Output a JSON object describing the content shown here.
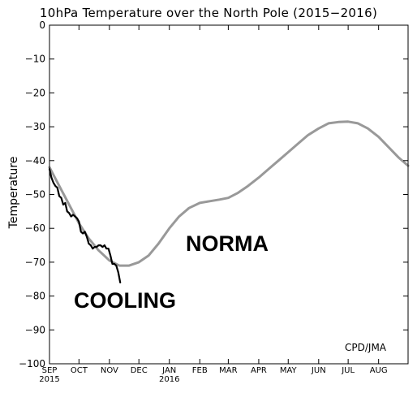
{
  "chart_data": {
    "type": "line",
    "title": "10hPa Temperature over the North Pole (2015−2016)",
    "ylabel": "Temperature",
    "xlabel": "",
    "ylim": [
      -100,
      0
    ],
    "yticks": [
      0,
      -10,
      -20,
      -30,
      -40,
      -50,
      -60,
      -70,
      -80,
      -90,
      -100
    ],
    "ytick_labels": [
      "0",
      "−10",
      "−20",
      "−30",
      "−40",
      "−50",
      "−60",
      "−70",
      "−80",
      "−90",
      "−100"
    ],
    "xlim": [
      "2015-09-01",
      "2016-08-31"
    ],
    "month_ticks": [
      {
        "date": "2015-09-01",
        "label": "SEP",
        "year": "2015"
      },
      {
        "date": "2015-10-01",
        "label": "OCT",
        "year": ""
      },
      {
        "date": "2015-11-01",
        "label": "NOV",
        "year": ""
      },
      {
        "date": "2015-12-01",
        "label": "DEC",
        "year": ""
      },
      {
        "date": "2016-01-01",
        "label": "JAN",
        "year": "2016"
      },
      {
        "date": "2016-02-01",
        "label": "FEB",
        "year": ""
      },
      {
        "date": "2016-03-01",
        "label": "MAR",
        "year": ""
      },
      {
        "date": "2016-04-01",
        "label": "APR",
        "year": ""
      },
      {
        "date": "2016-05-01",
        "label": "MAY",
        "year": ""
      },
      {
        "date": "2016-06-01",
        "label": "JUN",
        "year": ""
      },
      {
        "date": "2016-07-01",
        "label": "JUL",
        "year": ""
      },
      {
        "date": "2016-08-01",
        "label": "AUG",
        "year": ""
      }
    ],
    "grid": false,
    "series": [
      {
        "color": "#999999",
        "x": [
          "2015-09-01",
          "2015-09-11",
          "2015-09-21",
          "2015-10-01",
          "2015-10-11",
          "2015-10-21",
          "2015-11-01",
          "2015-11-11",
          "2015-11-21",
          "2015-12-01",
          "2015-12-11",
          "2015-12-21",
          "2016-01-01",
          "2016-01-11",
          "2016-01-21",
          "2016-02-01",
          "2016-02-11",
          "2016-02-21",
          "2016-03-01",
          "2016-03-11",
          "2016-03-21",
          "2016-04-01",
          "2016-04-11",
          "2016-04-21",
          "2016-05-01",
          "2016-05-11",
          "2016-05-21",
          "2016-06-01",
          "2016-06-11",
          "2016-06-21",
          "2016-07-01",
          "2016-07-11",
          "2016-07-21",
          "2016-08-01",
          "2016-08-11",
          "2016-08-21",
          "2016-08-31"
        ],
        "y": [
          -42,
          -47.5,
          -53,
          -58.5,
          -63,
          -66.5,
          -69.5,
          -71,
          -71,
          -70,
          -68,
          -64.5,
          -60,
          -56.5,
          -54,
          -52.5,
          -52,
          -51.5,
          -51,
          -49.5,
          -47.5,
          -45,
          -42.5,
          -40,
          -37.5,
          -35,
          -32.5,
          -30.5,
          -29,
          -28.6,
          -28.5,
          -29,
          -30.5,
          -33,
          -36,
          -39,
          -41.5
        ]
      },
      {
        "color": "#000000",
        "x": [
          "2015-09-01",
          "2015-09-03",
          "2015-09-05",
          "2015-09-07",
          "2015-09-09",
          "2015-09-11",
          "2015-09-13",
          "2015-09-15",
          "2015-09-17",
          "2015-09-19",
          "2015-09-21",
          "2015-09-23",
          "2015-09-25",
          "2015-09-27",
          "2015-09-29",
          "2015-10-01",
          "2015-10-03",
          "2015-10-05",
          "2015-10-07",
          "2015-10-09",
          "2015-10-11",
          "2015-10-13",
          "2015-10-15",
          "2015-10-17",
          "2015-10-19",
          "2015-10-21",
          "2015-10-23",
          "2015-10-25",
          "2015-10-27",
          "2015-10-29",
          "2015-10-31",
          "2015-11-02",
          "2015-11-04",
          "2015-11-06",
          "2015-11-08",
          "2015-11-10",
          "2015-11-12"
        ],
        "y": [
          -42.5,
          -45,
          -46.5,
          -47.5,
          -48,
          -50.5,
          -51,
          -53,
          -52.5,
          -55,
          -55.5,
          -56.5,
          -56,
          -56.5,
          -57,
          -58,
          -61,
          -61.5,
          -61,
          -62.5,
          -64.5,
          -65,
          -66,
          -65.5,
          -65.5,
          -65,
          -65,
          -65.5,
          -65,
          -66,
          -66,
          -68,
          -70.5,
          -70.5,
          -71,
          -73,
          -76
        ]
      }
    ],
    "annotations": [
      "COOLING",
      "NORMA",
      "CPD/JMA"
    ]
  }
}
